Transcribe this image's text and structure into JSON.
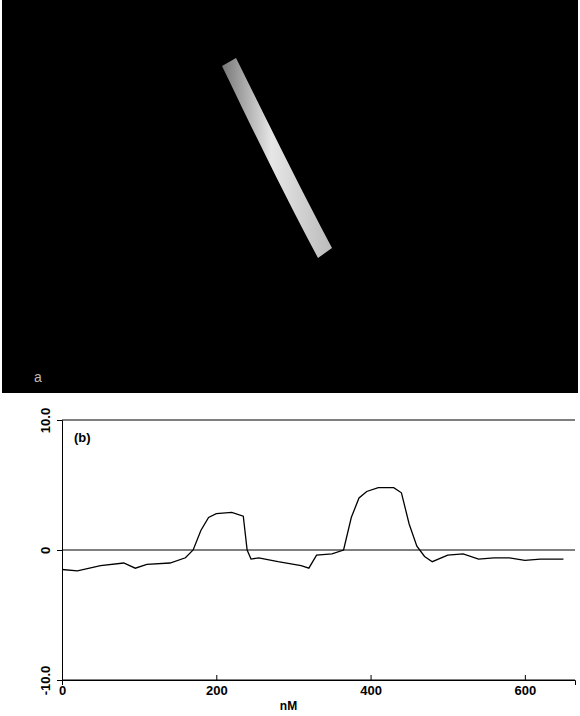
{
  "image_panel": {
    "label": "a"
  },
  "chart_data": {
    "type": "line",
    "annotations": [
      "(b)"
    ],
    "xlabel": "nM",
    "color": "#000000",
    "grid": true,
    "x": [
      0,
      20,
      50,
      80,
      95,
      110,
      140,
      160,
      170,
      180,
      190,
      200,
      220,
      235,
      240,
      245,
      255,
      280,
      310,
      320,
      330,
      350,
      365,
      375,
      385,
      395,
      410,
      430,
      440,
      450,
      460,
      470,
      480,
      500,
      520,
      540,
      560,
      580,
      600,
      620,
      650
    ],
    "values": [
      -1.5,
      -1.6,
      -1.2,
      -1.0,
      -1.4,
      -1.1,
      -1.0,
      -0.6,
      0.0,
      1.5,
      2.5,
      2.8,
      2.9,
      2.6,
      0.0,
      -0.7,
      -0.6,
      -0.9,
      -1.2,
      -1.4,
      -0.4,
      -0.3,
      0.0,
      2.5,
      4.0,
      4.5,
      4.8,
      4.8,
      4.4,
      2.0,
      0.3,
      -0.5,
      -0.9,
      -0.4,
      -0.3,
      -0.7,
      -0.6,
      -0.6,
      -0.8,
      -0.7,
      -0.7
    ],
    "xlim": [
      0,
      665
    ],
    "ylim": [
      -10,
      10
    ],
    "xticks": [
      0,
      200,
      400,
      600
    ],
    "yticks": [
      {
        "value": -10,
        "label": "-10.0"
      },
      0,
      {
        "value": 10,
        "label": "10.0"
      }
    ]
  }
}
